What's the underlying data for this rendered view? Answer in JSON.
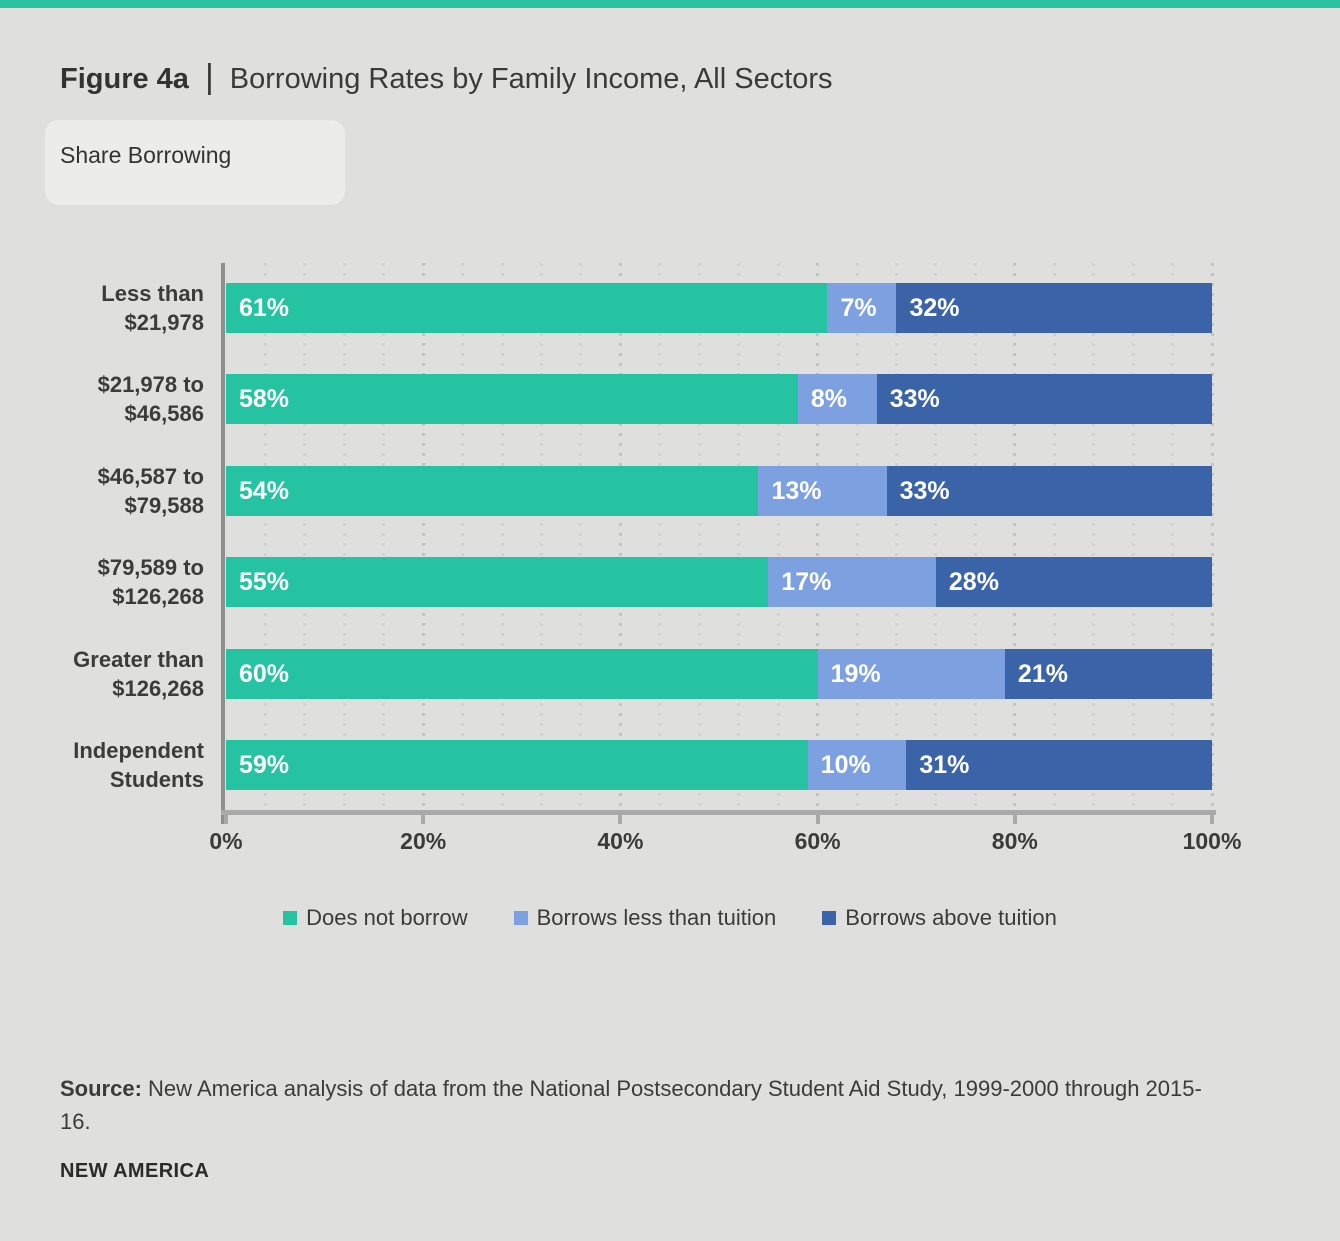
{
  "page": {
    "background": "#dfdfdd",
    "accent_bar_color": "#2bc2a1"
  },
  "header": {
    "figure_label": "Figure 4a",
    "separator": "|",
    "title": "Borrowing Rates by Family Income, All Sectors",
    "subtitle": "Share Borrowing"
  },
  "chart_data": {
    "type": "bar",
    "orientation": "horizontal",
    "stacked": true,
    "title": "Share Borrowing",
    "categories": [
      "Less than\n$21,978",
      "$21,978 to\n$46,586",
      "$46,587 to\n$79,588",
      "$79,589 to\n$126,268",
      "Greater than\n$126,268",
      "Independent\nStudents"
    ],
    "series": [
      {
        "name": "Does not borrow",
        "color": "#25c3a2",
        "values": [
          61,
          58,
          54,
          55,
          60,
          59
        ]
      },
      {
        "name": "Borrows less than tuition",
        "color": "#7da1e0",
        "values": [
          7,
          8,
          13,
          17,
          19,
          10
        ]
      },
      {
        "name": "Borrows above tuition",
        "color": "#3a63a8",
        "values": [
          32,
          33,
          33,
          28,
          21,
          31
        ]
      }
    ],
    "value_suffix": "%",
    "x_ticks": [
      "0%",
      "20%",
      "40%",
      "60%",
      "80%",
      "100%"
    ],
    "xlim": [
      0,
      100
    ],
    "grid": {
      "style": "dotted-vertical",
      "minor_step_pct": 4,
      "major_step_pct": 20,
      "minor_color": "#d2d2d0",
      "major_color": "#c4c4c2"
    },
    "axis_color": "#a9a9a9",
    "legend_position": "bottom"
  },
  "source": {
    "label": "Source:",
    "text": "New America analysis of data from the National Postsecondary Student Aid Study, 1999-2000 through 2015-16."
  },
  "footer": {
    "brand": "NEW AMERICA"
  }
}
